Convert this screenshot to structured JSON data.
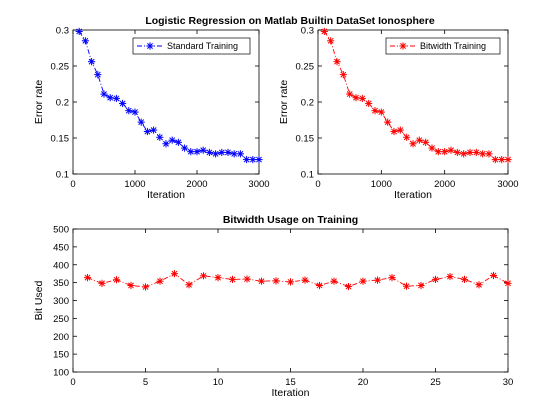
{
  "chart_data": [
    {
      "type": "line",
      "title": "Logistic Regression on Matlab Builtin DataSet Ionosphere",
      "xlabel": "Iteration",
      "ylabel": "Error rate",
      "xlim": [
        0,
        3000
      ],
      "ylim": [
        0.1,
        0.3
      ],
      "xticks": [
        0,
        1000,
        2000,
        3000
      ],
      "yticks": [
        0.1,
        0.15,
        0.2,
        0.25,
        0.3
      ],
      "legend_position": "top-right",
      "grid": false,
      "series": [
        {
          "name": "Standard Training",
          "color": "#0000ff",
          "marker": "asterisk",
          "line_style": "dash-dot",
          "x": [
            100,
            200,
            300,
            400,
            500,
            600,
            700,
            800,
            900,
            1000,
            1100,
            1200,
            1300,
            1400,
            1500,
            1600,
            1700,
            1800,
            1900,
            2000,
            2100,
            2200,
            2300,
            2400,
            2500,
            2600,
            2700,
            2800,
            2900,
            3000
          ],
          "y": [
            0.298,
            0.285,
            0.256,
            0.238,
            0.211,
            0.206,
            0.205,
            0.198,
            0.188,
            0.186,
            0.172,
            0.159,
            0.161,
            0.151,
            0.142,
            0.147,
            0.144,
            0.136,
            0.131,
            0.131,
            0.133,
            0.13,
            0.128,
            0.13,
            0.13,
            0.128,
            0.128,
            0.12,
            0.12,
            0.12
          ]
        }
      ]
    },
    {
      "type": "line",
      "title": "",
      "xlabel": "Iteration",
      "ylabel": "Error rate",
      "xlim": [
        0,
        3000
      ],
      "ylim": [
        0.1,
        0.3
      ],
      "xticks": [
        0,
        1000,
        2000,
        3000
      ],
      "yticks": [
        0.1,
        0.15,
        0.2,
        0.25,
        0.3
      ],
      "legend_position": "top-right",
      "grid": false,
      "series": [
        {
          "name": "Bitwidth Training",
          "color": "#ff0000",
          "marker": "asterisk",
          "line_style": "dash-dot",
          "x": [
            100,
            200,
            300,
            400,
            500,
            600,
            700,
            800,
            900,
            1000,
            1100,
            1200,
            1300,
            1400,
            1500,
            1600,
            1700,
            1800,
            1900,
            2000,
            2100,
            2200,
            2300,
            2400,
            2500,
            2600,
            2700,
            2800,
            2900,
            3000
          ],
          "y": [
            0.298,
            0.285,
            0.256,
            0.238,
            0.211,
            0.206,
            0.205,
            0.198,
            0.188,
            0.186,
            0.172,
            0.159,
            0.161,
            0.151,
            0.142,
            0.147,
            0.144,
            0.136,
            0.131,
            0.131,
            0.133,
            0.13,
            0.128,
            0.13,
            0.13,
            0.128,
            0.128,
            0.12,
            0.12,
            0.12
          ]
        }
      ]
    },
    {
      "type": "line",
      "title": "Bitwidth Usage on Training",
      "xlabel": "Iteration",
      "ylabel": "Bit Used",
      "xlim": [
        0,
        30
      ],
      "ylim": [
        100,
        500
      ],
      "xticks": [
        0,
        5,
        10,
        15,
        20,
        25,
        30
      ],
      "yticks": [
        100,
        150,
        200,
        250,
        300,
        350,
        400,
        450,
        500
      ],
      "grid": false,
      "series": [
        {
          "color": "#ff0000",
          "marker": "asterisk",
          "line_style": "dash-dot",
          "x": [
            1,
            2,
            3,
            4,
            5,
            6,
            7,
            8,
            9,
            10,
            11,
            12,
            13,
            14,
            15,
            16,
            17,
            18,
            19,
            20,
            21,
            22,
            23,
            24,
            25,
            26,
            27,
            28,
            29,
            30
          ],
          "y": [
            364,
            348,
            358,
            342,
            338,
            354,
            375,
            344,
            369,
            364,
            359,
            360,
            354,
            355,
            352,
            357,
            342,
            354,
            339,
            354,
            357,
            364,
            340,
            342,
            359,
            367,
            359,
            344,
            370,
            348
          ]
        }
      ]
    }
  ]
}
